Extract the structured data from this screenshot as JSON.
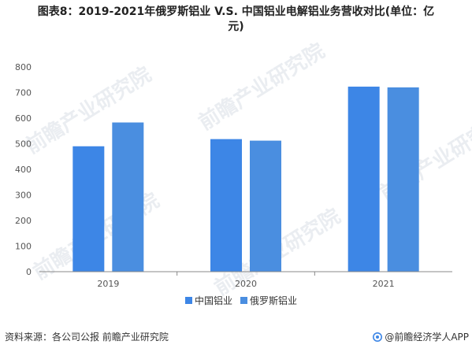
{
  "title": {
    "line1": "图表8：2019-2021年俄罗斯铝业 V.S. 中国铝业电解铝业务营收对比(单位：亿",
    "line2": "元)"
  },
  "chart_data": {
    "type": "bar",
    "categories": [
      "2019",
      "2020",
      "2021"
    ],
    "series": [
      {
        "name": "中国铝业",
        "values": [
          490,
          518,
          723
        ],
        "color": "#3d86e6"
      },
      {
        "name": "俄罗斯铝业",
        "values": [
          583,
          512,
          720
        ],
        "color": "#4a8ee0"
      }
    ],
    "ylim": [
      0,
      800
    ],
    "yticks": [
      0,
      100,
      200,
      300,
      400,
      500,
      600,
      700,
      800
    ],
    "legend_position": "bottom",
    "grid": false
  },
  "footer": {
    "source": "资料来源：各公司公报 前瞻产业研究院",
    "brand": "@前瞻经济学人APP"
  },
  "watermark": {
    "text": "前瞻产业研究院"
  },
  "colors": {
    "series1": "#3d86e6",
    "series2": "#4a8ee0",
    "axis": "#888888"
  }
}
